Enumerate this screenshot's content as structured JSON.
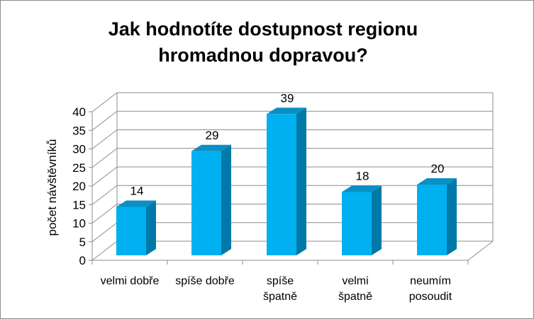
{
  "chart_data": {
    "type": "bar",
    "title": [
      "Jak hodnotíte dostupnost regionu",
      "hromadnou dopravou?"
    ],
    "ylabel": "počet návštěvníků",
    "categories": [
      [
        "velmi dobře"
      ],
      [
        "spíše dobře"
      ],
      [
        "spíše",
        "špatně"
      ],
      [
        "velmi",
        "špatně"
      ],
      [
        "neumím",
        "posoudit"
      ]
    ],
    "values": [
      14,
      29,
      39,
      18,
      20
    ],
    "yticks": [
      "0",
      "5",
      "10",
      "15",
      "20",
      "25",
      "30",
      "35",
      "40"
    ],
    "ylim": [
      0,
      40
    ],
    "grid": true,
    "legend": "none",
    "colors": {
      "front": "#00b0f0",
      "side": "#0079a8",
      "top": "#0a8fc4",
      "grid": "#8c8c8c"
    }
  }
}
